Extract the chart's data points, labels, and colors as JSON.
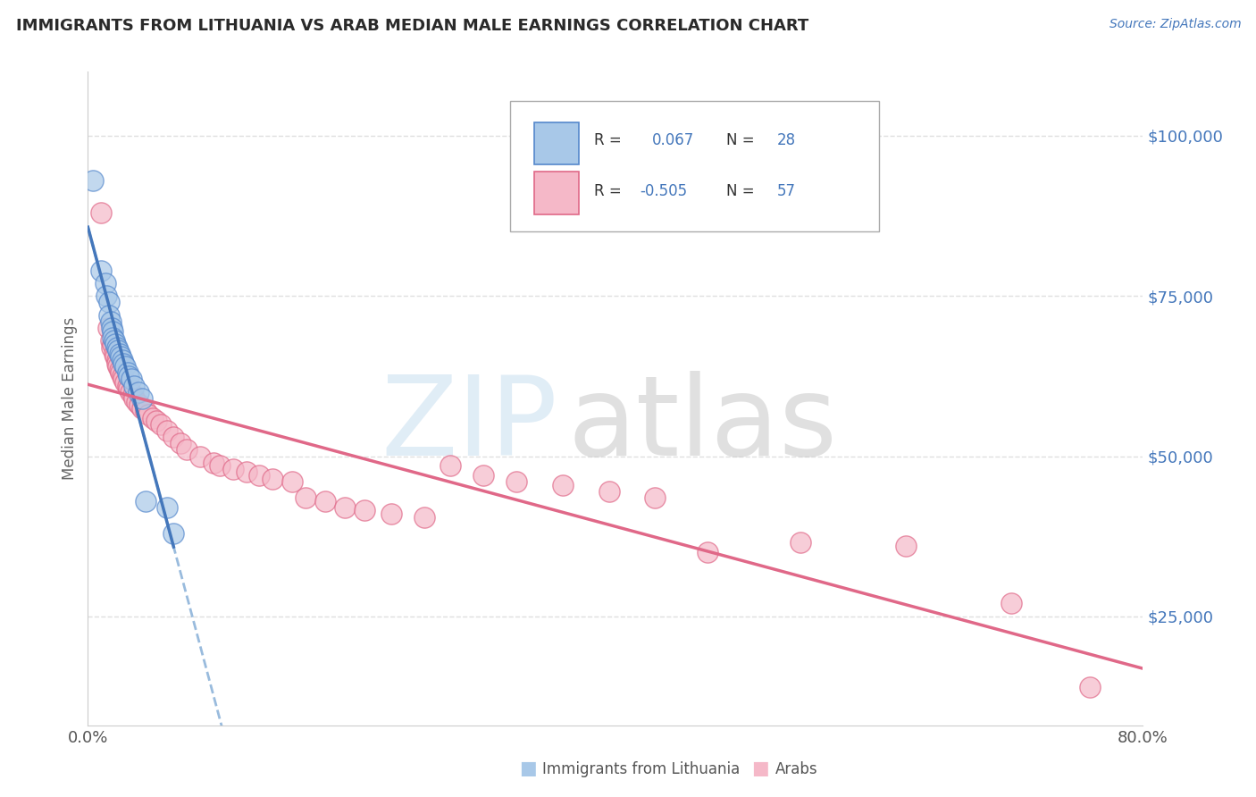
{
  "title": "IMMIGRANTS FROM LITHUANIA VS ARAB MEDIAN MALE EARNINGS CORRELATION CHART",
  "source": "Source: ZipAtlas.com",
  "ylabel": "Median Male Earnings",
  "ytick_labels": [
    "$25,000",
    "$50,000",
    "$75,000",
    "$100,000"
  ],
  "ytick_values": [
    25000,
    50000,
    75000,
    100000
  ],
  "xmin": 0.0,
  "xmax": 0.8,
  "ymin": 8000,
  "ymax": 110000,
  "blue_fill": "#a8c8e8",
  "blue_edge": "#5588cc",
  "pink_fill": "#f5b8c8",
  "pink_edge": "#e06888",
  "blue_line": "#4477bb",
  "blue_dash": "#99bbdd",
  "pink_line": "#e06888",
  "grid_color": "#e0e0e0",
  "title_color": "#2a2a2a",
  "source_color": "#4477bb",
  "legend_text_color": "#4477bb",
  "axis_label_color": "#666666",
  "scatter_blue": [
    [
      0.004,
      93000
    ],
    [
      0.01,
      79000
    ],
    [
      0.013,
      77000
    ],
    [
      0.014,
      75000
    ],
    [
      0.016,
      74000
    ],
    [
      0.016,
      72000
    ],
    [
      0.017,
      71000
    ],
    [
      0.018,
      70000
    ],
    [
      0.019,
      69500
    ],
    [
      0.019,
      68500
    ],
    [
      0.02,
      68000
    ],
    [
      0.021,
      67500
    ],
    [
      0.022,
      67000
    ],
    [
      0.023,
      66500
    ],
    [
      0.024,
      66000
    ],
    [
      0.025,
      65500
    ],
    [
      0.026,
      65000
    ],
    [
      0.027,
      64500
    ],
    [
      0.028,
      64000
    ],
    [
      0.03,
      63000
    ],
    [
      0.031,
      62500
    ],
    [
      0.033,
      62000
    ],
    [
      0.035,
      61000
    ],
    [
      0.038,
      60000
    ],
    [
      0.041,
      59000
    ],
    [
      0.044,
      43000
    ],
    [
      0.06,
      42000
    ],
    [
      0.065,
      38000
    ]
  ],
  "scatter_pink": [
    [
      0.01,
      88000
    ],
    [
      0.015,
      70000
    ],
    [
      0.017,
      68000
    ],
    [
      0.018,
      67000
    ],
    [
      0.019,
      67500
    ],
    [
      0.02,
      66000
    ],
    [
      0.021,
      65500
    ],
    [
      0.022,
      65000
    ],
    [
      0.022,
      64500
    ],
    [
      0.023,
      64000
    ],
    [
      0.024,
      63500
    ],
    [
      0.025,
      63000
    ],
    [
      0.026,
      62500
    ],
    [
      0.027,
      62000
    ],
    [
      0.028,
      61500
    ],
    [
      0.03,
      61000
    ],
    [
      0.031,
      60500
    ],
    [
      0.032,
      60000
    ],
    [
      0.034,
      59500
    ],
    [
      0.035,
      59000
    ],
    [
      0.037,
      58500
    ],
    [
      0.039,
      58000
    ],
    [
      0.041,
      57500
    ],
    [
      0.044,
      57000
    ],
    [
      0.046,
      56500
    ],
    [
      0.049,
      56000
    ],
    [
      0.052,
      55500
    ],
    [
      0.055,
      55000
    ],
    [
      0.06,
      54000
    ],
    [
      0.065,
      53000
    ],
    [
      0.07,
      52000
    ],
    [
      0.075,
      51000
    ],
    [
      0.085,
      50000
    ],
    [
      0.095,
      49000
    ],
    [
      0.1,
      48500
    ],
    [
      0.11,
      48000
    ],
    [
      0.12,
      47500
    ],
    [
      0.13,
      47000
    ],
    [
      0.14,
      46500
    ],
    [
      0.155,
      46000
    ],
    [
      0.165,
      43500
    ],
    [
      0.18,
      43000
    ],
    [
      0.195,
      42000
    ],
    [
      0.21,
      41500
    ],
    [
      0.23,
      41000
    ],
    [
      0.255,
      40500
    ],
    [
      0.275,
      48500
    ],
    [
      0.3,
      47000
    ],
    [
      0.325,
      46000
    ],
    [
      0.36,
      45500
    ],
    [
      0.395,
      44500
    ],
    [
      0.43,
      43500
    ],
    [
      0.47,
      35000
    ],
    [
      0.54,
      36500
    ],
    [
      0.62,
      36000
    ],
    [
      0.7,
      27000
    ],
    [
      0.76,
      14000
    ]
  ]
}
